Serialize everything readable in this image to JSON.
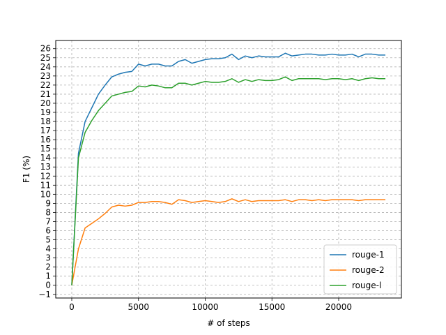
{
  "chart_data": {
    "type": "line",
    "title": "",
    "xlabel": "# of steps",
    "ylabel": "F1 (%)",
    "xlim": [
      -1200,
      24700
    ],
    "ylim": [
      -1.4,
      26.9
    ],
    "xticks": [
      0,
      5000,
      10000,
      15000,
      20000
    ],
    "yticks": [
      -1,
      0,
      1,
      2,
      3,
      4,
      5,
      6,
      7,
      8,
      9,
      10,
      11,
      12,
      13,
      14,
      15,
      16,
      17,
      18,
      19,
      20,
      21,
      22,
      23,
      24,
      25,
      26
    ],
    "grid": true,
    "legend_position": "lower-right",
    "x": [
      0,
      500,
      1000,
      1500,
      2000,
      2500,
      3000,
      3500,
      4000,
      4500,
      5000,
      5500,
      6000,
      6500,
      7000,
      7500,
      8000,
      8500,
      9000,
      9500,
      10000,
      10500,
      11000,
      11500,
      12000,
      12500,
      13000,
      13500,
      14000,
      14500,
      15000,
      15500,
      16000,
      16500,
      17000,
      17500,
      18000,
      18500,
      19000,
      19500,
      20000,
      20500,
      21000,
      21500,
      22000,
      22500,
      23000,
      23500
    ],
    "series": [
      {
        "name": "rouge-1",
        "color": "#1f77b4",
        "values": [
          0,
          14.5,
          18.0,
          19.5,
          21.0,
          22.0,
          22.9,
          23.2,
          23.4,
          23.5,
          24.3,
          24.1,
          24.3,
          24.3,
          24.1,
          24.1,
          24.6,
          24.8,
          24.4,
          24.6,
          24.8,
          24.9,
          24.9,
          25.0,
          25.4,
          24.8,
          25.2,
          25.0,
          25.2,
          25.1,
          25.1,
          25.1,
          25.5,
          25.2,
          25.3,
          25.4,
          25.4,
          25.3,
          25.3,
          25.4,
          25.3,
          25.3,
          25.4,
          25.1,
          25.4,
          25.4,
          25.3,
          25.3
        ]
      },
      {
        "name": "rouge-2",
        "color": "#ff7f0e",
        "values": [
          0,
          4.0,
          6.3,
          6.8,
          7.3,
          7.9,
          8.6,
          8.8,
          8.7,
          8.8,
          9.1,
          9.1,
          9.2,
          9.2,
          9.1,
          8.9,
          9.4,
          9.3,
          9.1,
          9.2,
          9.3,
          9.2,
          9.1,
          9.2,
          9.5,
          9.2,
          9.4,
          9.2,
          9.3,
          9.3,
          9.3,
          9.3,
          9.4,
          9.2,
          9.4,
          9.4,
          9.3,
          9.4,
          9.3,
          9.4,
          9.4,
          9.4,
          9.4,
          9.3,
          9.4,
          9.4,
          9.4,
          9.4
        ]
      },
      {
        "name": "rouge-l",
        "color": "#2ca02c",
        "values": [
          0,
          14.0,
          16.8,
          18.1,
          19.2,
          20.0,
          20.8,
          21.0,
          21.2,
          21.3,
          21.9,
          21.8,
          22.0,
          21.9,
          21.7,
          21.7,
          22.2,
          22.2,
          22.0,
          22.2,
          22.4,
          22.3,
          22.3,
          22.4,
          22.7,
          22.3,
          22.6,
          22.4,
          22.6,
          22.5,
          22.5,
          22.6,
          22.9,
          22.5,
          22.7,
          22.7,
          22.7,
          22.7,
          22.6,
          22.7,
          22.7,
          22.6,
          22.7,
          22.5,
          22.7,
          22.8,
          22.7,
          22.7
        ]
      }
    ]
  }
}
